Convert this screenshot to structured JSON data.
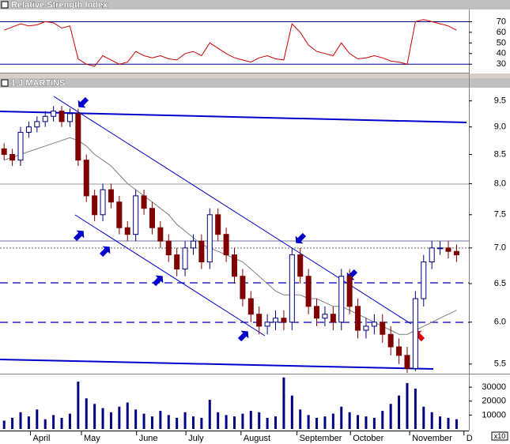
{
  "chart_data": [
    {
      "type": "line",
      "title": "Relative Strength Index",
      "x": [
        0,
        1,
        2,
        3,
        4,
        5,
        6,
        7,
        8,
        9,
        10,
        11,
        12,
        13,
        14,
        15,
        16,
        17,
        18,
        19,
        20,
        21,
        22,
        23,
        24,
        25,
        26,
        27,
        28,
        29,
        30,
        31,
        32,
        33,
        34,
        35,
        36,
        37,
        38,
        39,
        40,
        41,
        42,
        43,
        44,
        45,
        46,
        47,
        48,
        49,
        50,
        51,
        52,
        53,
        54,
        55
      ],
      "xlim": [
        -0.5,
        56.5
      ],
      "series": [
        {
          "color": "#cc0000",
          "values": [
            62,
            65,
            68,
            66,
            67,
            70,
            69,
            64,
            66,
            35,
            30,
            28,
            38,
            34,
            30,
            32,
            42,
            38,
            36,
            38,
            35,
            34,
            40,
            42,
            38,
            50,
            45,
            40,
            36,
            34,
            32,
            36,
            38,
            35,
            34,
            68,
            60,
            48,
            42,
            40,
            38,
            50,
            40,
            35,
            36,
            38,
            36,
            33,
            32,
            30,
            70,
            72,
            70,
            68,
            66,
            62
          ]
        }
      ],
      "ylim": [
        22,
        80
      ],
      "yticks": [
        30,
        40,
        50,
        60,
        70
      ],
      "levels": [
        30,
        70
      ],
      "level_color": "#000080"
    },
    {
      "type": "candlestick",
      "title": "1 J MARTINS",
      "x": [
        0,
        1,
        2,
        3,
        4,
        5,
        6,
        7,
        8,
        9,
        10,
        11,
        12,
        13,
        14,
        15,
        16,
        17,
        18,
        19,
        20,
        21,
        22,
        23,
        24,
        25,
        26,
        27,
        28,
        29,
        30,
        31,
        32,
        33,
        34,
        35,
        36,
        37,
        38,
        39,
        40,
        41,
        42,
        43,
        44,
        45,
        46,
        47,
        48,
        49,
        50,
        51,
        52,
        53,
        54,
        55
      ],
      "xlim": [
        -0.5,
        56.5
      ],
      "open": [
        8.6,
        8.5,
        8.4,
        8.9,
        9.0,
        9.1,
        9.2,
        9.3,
        9.1,
        9.25,
        8.4,
        7.8,
        7.5,
        7.9,
        7.7,
        7.3,
        7.2,
        7.8,
        7.6,
        7.3,
        7.1,
        6.9,
        6.7,
        7.0,
        7.1,
        6.8,
        7.5,
        7.2,
        6.9,
        6.6,
        6.3,
        6.1,
        5.95,
        6.0,
        6.05,
        6.0,
        6.9,
        6.6,
        6.2,
        6.05,
        6.1,
        6.0,
        6.6,
        6.2,
        5.9,
        5.95,
        6.0,
        5.85,
        5.7,
        5.6,
        5.45,
        6.3,
        6.8,
        7.0,
        7.0,
        6.95
      ],
      "high": [
        8.7,
        8.6,
        9.0,
        9.1,
        9.2,
        9.3,
        9.4,
        9.4,
        9.35,
        9.35,
        8.5,
        7.9,
        8.0,
        8.0,
        7.8,
        7.4,
        7.9,
        7.9,
        7.7,
        7.4,
        7.2,
        7.0,
        7.1,
        7.2,
        7.2,
        7.6,
        7.6,
        7.3,
        7.0,
        6.7,
        6.4,
        6.2,
        6.1,
        6.15,
        6.15,
        7.0,
        7.0,
        6.7,
        6.3,
        6.2,
        6.2,
        6.7,
        6.7,
        6.3,
        6.05,
        6.1,
        6.1,
        5.95,
        5.8,
        5.7,
        6.4,
        6.9,
        7.1,
        7.1,
        7.1,
        7.05
      ],
      "low": [
        8.4,
        8.3,
        8.3,
        8.8,
        8.9,
        9.0,
        9.1,
        9.0,
        9.0,
        8.3,
        7.7,
        7.4,
        7.4,
        7.6,
        7.2,
        7.1,
        7.1,
        7.5,
        7.2,
        7.0,
        6.8,
        6.6,
        6.6,
        6.9,
        6.7,
        6.7,
        7.1,
        6.8,
        6.5,
        6.2,
        6.0,
        5.85,
        5.85,
        5.9,
        5.9,
        5.9,
        6.5,
        6.1,
        5.95,
        5.95,
        5.9,
        5.9,
        6.1,
        5.8,
        5.8,
        5.85,
        5.75,
        5.6,
        5.5,
        5.4,
        5.42,
        6.2,
        6.7,
        6.9,
        6.85,
        6.8
      ],
      "close": [
        8.5,
        8.4,
        8.9,
        9.0,
        9.1,
        9.2,
        9.3,
        9.1,
        9.25,
        8.4,
        7.8,
        7.5,
        7.9,
        7.7,
        7.3,
        7.2,
        7.8,
        7.6,
        7.3,
        7.1,
        6.9,
        6.7,
        7.0,
        7.1,
        6.8,
        7.5,
        7.2,
        6.9,
        6.6,
        6.3,
        6.1,
        5.95,
        6.0,
        6.05,
        6.0,
        6.9,
        6.6,
        6.2,
        6.05,
        6.1,
        6.0,
        6.6,
        6.2,
        5.9,
        5.95,
        6.0,
        5.85,
        5.7,
        5.6,
        5.45,
        6.3,
        6.8,
        7.0,
        7.0,
        6.95,
        6.9
      ],
      "up_color": "#ffffff",
      "up_edge": "#000080",
      "down_color": "#800000",
      "lines": [
        {
          "color": "#808080",
          "values": [
            8.4,
            8.45,
            8.5,
            8.55,
            8.6,
            8.65,
            8.7,
            8.75,
            8.8,
            8.75,
            8.65,
            8.5,
            8.4,
            8.3,
            8.15,
            8.0,
            7.9,
            7.8,
            7.7,
            7.6,
            7.5,
            7.35,
            7.25,
            7.15,
            7.05,
            7.0,
            6.95,
            6.9,
            6.85,
            6.8,
            6.7,
            6.6,
            6.5,
            6.4,
            6.35,
            6.35,
            6.35,
            6.3,
            6.3,
            6.25,
            6.2,
            6.2,
            6.15,
            6.1,
            6.05,
            6.0,
            5.95,
            5.9,
            5.85,
            5.85,
            5.9,
            5.95,
            6.0,
            6.05,
            6.1,
            6.15
          ]
        }
      ],
      "ylim": [
        5.4,
        9.7
      ],
      "log_scale": true,
      "yticks": [
        5.5,
        {
          "value": 6,
          "label": "6.0"
        },
        6.5,
        {
          "value": 7,
          "label": "7.0"
        },
        7.5,
        {
          "value": 8,
          "label": "8.0"
        },
        8.5,
        {
          "value": 9,
          "label": "9.0"
        },
        9.5
      ]
    },
    {
      "type": "bar",
      "x": [
        0,
        1,
        2,
        3,
        4,
        5,
        6,
        7,
        8,
        9,
        10,
        11,
        12,
        13,
        14,
        15,
        16,
        17,
        18,
        19,
        20,
        21,
        22,
        23,
        24,
        25,
        26,
        27,
        28,
        29,
        30,
        31,
        32,
        33,
        34,
        35,
        36,
        37,
        38,
        39,
        40,
        41,
        42,
        43,
        44,
        45,
        46,
        47,
        48,
        49,
        50,
        51,
        52,
        53,
        54,
        55
      ],
      "xlim": [
        -0.5,
        56.5
      ],
      "values": [
        6000,
        8000,
        12000,
        9000,
        14000,
        7000,
        10000,
        8000,
        11000,
        34000,
        22000,
        18000,
        15000,
        12000,
        16000,
        19000,
        14000,
        11000,
        9000,
        13000,
        10000,
        8000,
        12000,
        9000,
        8000,
        21000,
        12000,
        10000,
        9000,
        11000,
        13000,
        12000,
        8000,
        9000,
        37000,
        24000,
        14000,
        10000,
        8000,
        9000,
        11000,
        16000,
        12000,
        10000,
        9000,
        8000,
        13000,
        18000,
        24000,
        33000,
        29000,
        16000,
        12000,
        9000,
        8000,
        7000
      ],
      "color": "#000080",
      "ylim": [
        0,
        38000
      ],
      "yticks": [
        10000,
        20000,
        30000
      ],
      "multiplier_label": "x10",
      "xticks": [
        {
          "value": 3.2,
          "label": "April"
        },
        {
          "value": 9.4,
          "label": "May"
        },
        {
          "value": 16.1,
          "label": "June"
        },
        {
          "value": 22.1,
          "label": "July"
        },
        {
          "value": 28.8,
          "label": "August"
        },
        {
          "value": 35.6,
          "label": "September"
        },
        {
          "value": 42.1,
          "label": "October"
        },
        {
          "value": 49.3,
          "label": "November"
        },
        {
          "value": 55.9,
          "label": "D"
        }
      ]
    }
  ]
}
